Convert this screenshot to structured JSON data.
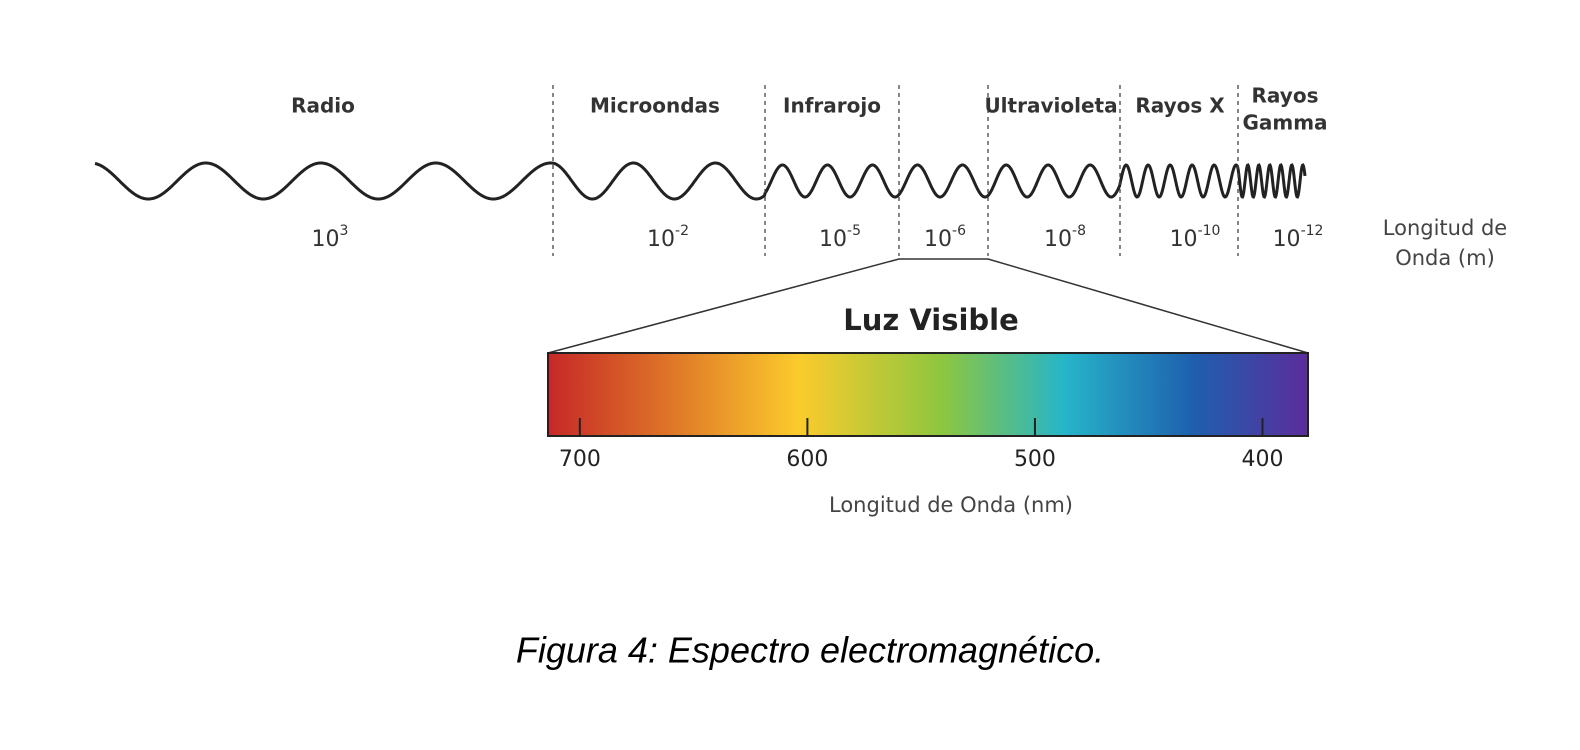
{
  "bands": [
    {
      "label_lines": [
        "Radio"
      ],
      "wavelength": {
        "base": "10",
        "exponent": "3"
      }
    },
    {
      "label_lines": [
        "Microondas"
      ],
      "wavelength": {
        "base": "10",
        "exponent": "-2"
      }
    },
    {
      "label_lines": [
        "Infrarojo"
      ],
      "wavelength": {
        "base": "10",
        "exponent": "-5"
      }
    },
    {
      "label_lines": [],
      "wavelength": {
        "base": "10",
        "exponent": "-6"
      }
    },
    {
      "label_lines": [
        "Ultravioleta"
      ],
      "wavelength": {
        "base": "10",
        "exponent": "-8"
      }
    },
    {
      "label_lines": [
        "Rayos X"
      ],
      "wavelength": {
        "base": "10",
        "exponent": "-10"
      }
    },
    {
      "label_lines": [
        "Rayos",
        "Gamma"
      ],
      "wavelength": {
        "base": "10",
        "exponent": "-12"
      }
    }
  ],
  "wavelength_axis_label_lines": [
    "Longitud de",
    "Onda (m)"
  ],
  "visible": {
    "title": "Luz Visible",
    "axis_label": "Longitud de Onda (nm)",
    "xlim": [
      714,
      380
    ],
    "xticks": [
      700,
      600,
      500,
      400
    ]
  },
  "caption": "Figura 4: Espectro electromagnético."
}
